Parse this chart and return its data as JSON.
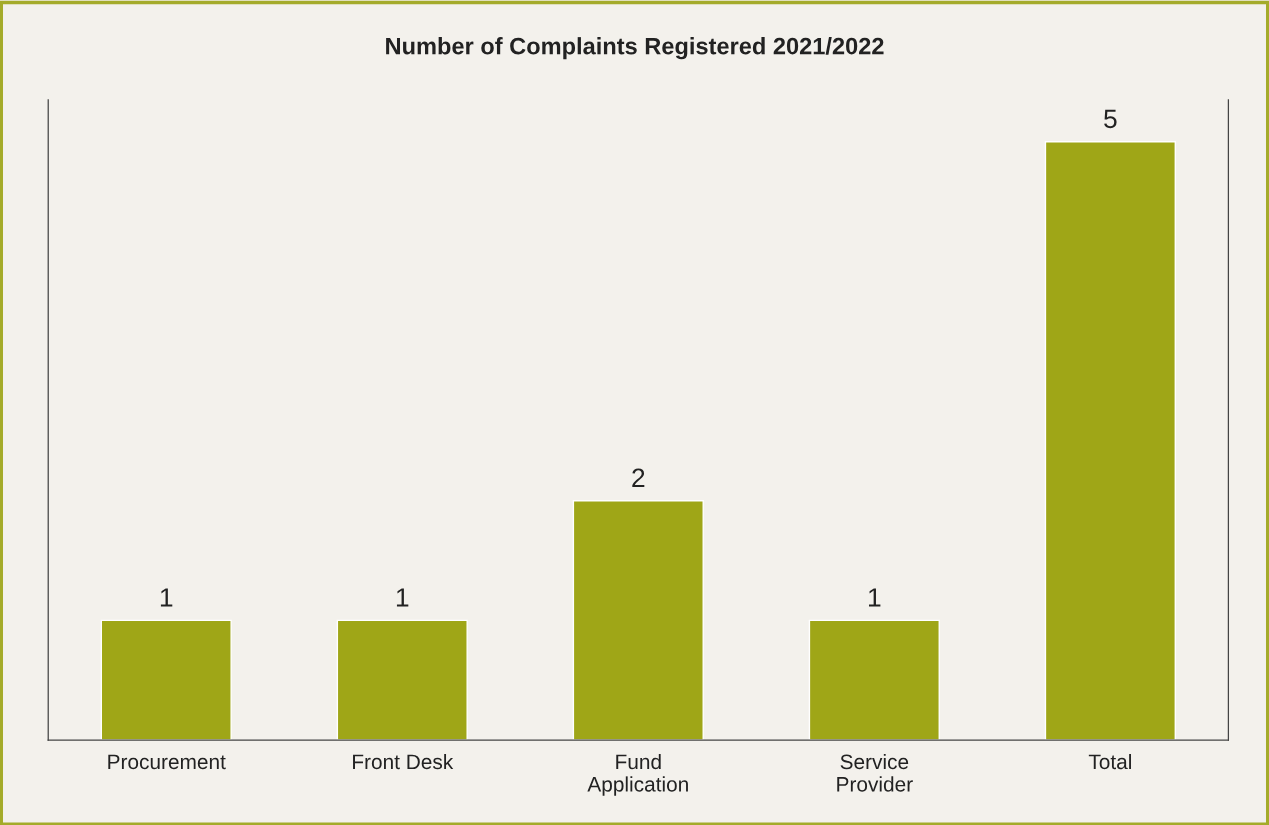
{
  "chart_data": {
    "type": "bar",
    "title": "Number of Complaints Registered 2021/2022",
    "categories": [
      "Procurement",
      "Front Desk",
      "Fund\nApplication",
      "Service\nProvider",
      "Total"
    ],
    "values": [
      1,
      1,
      2,
      1,
      5
    ],
    "color": "#9fa617",
    "data_labels": true,
    "grid": false,
    "legend": false
  }
}
